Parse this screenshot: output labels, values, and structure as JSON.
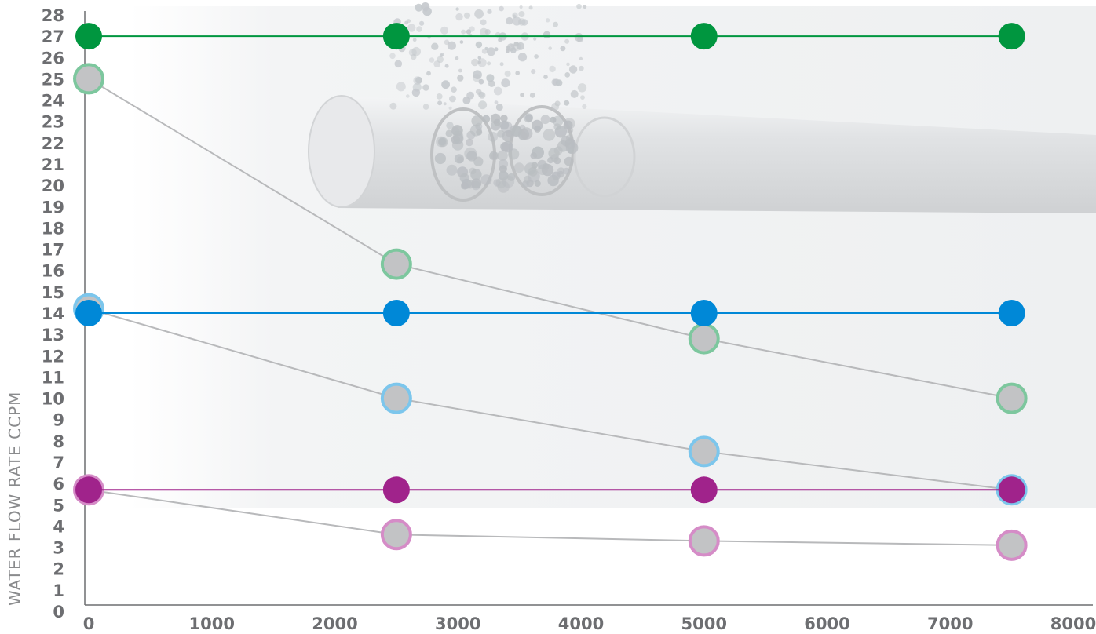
{
  "chart_data": {
    "type": "line",
    "ylabel": "WATER FLOW RATE CCPM",
    "xlabel": "",
    "title": "",
    "xlim": [
      0,
      8000
    ],
    "ylim": [
      0,
      28
    ],
    "grid": false,
    "x_ticks": [
      "0",
      "1000",
      "2000",
      "3000",
      "4000",
      "5000",
      "6000",
      "7000",
      "8000"
    ],
    "y_ticks": [
      "0",
      "1",
      "2",
      "3",
      "4",
      "5",
      "6",
      "7",
      "8",
      "9",
      "10",
      "11",
      "12",
      "13",
      "14",
      "15",
      "16",
      "17",
      "18",
      "19",
      "20",
      "21",
      "22",
      "23",
      "24",
      "25",
      "26",
      "27",
      "28"
    ],
    "x": [
      0,
      2500,
      5000,
      7500
    ],
    "series": [
      {
        "color": "#00963f",
        "style": "solid",
        "values": [
          27,
          27,
          27,
          27
        ]
      },
      {
        "color": "#7dc79e",
        "style": "hollow",
        "values": [
          25,
          16.3,
          12.8,
          10
        ]
      },
      {
        "color": "#0088d7",
        "style": "solid",
        "values": [
          14,
          14,
          14,
          14
        ]
      },
      {
        "color": "#7cc6ec",
        "style": "hollow",
        "values": [
          14.2,
          10,
          7.5,
          5.7
        ]
      },
      {
        "color": "#a0238b",
        "style": "solid",
        "values": [
          5.7,
          5.7,
          5.7,
          5.7
        ]
      },
      {
        "color": "#d58cc7",
        "style": "hollow",
        "values": [
          5.7,
          3.6,
          3.3,
          3.1
        ]
      }
    ],
    "colors": {
      "axis": "#6d6e71",
      "trend_line": "#b8b9bb",
      "hollow_fill": "#c2c3c5"
    }
  }
}
